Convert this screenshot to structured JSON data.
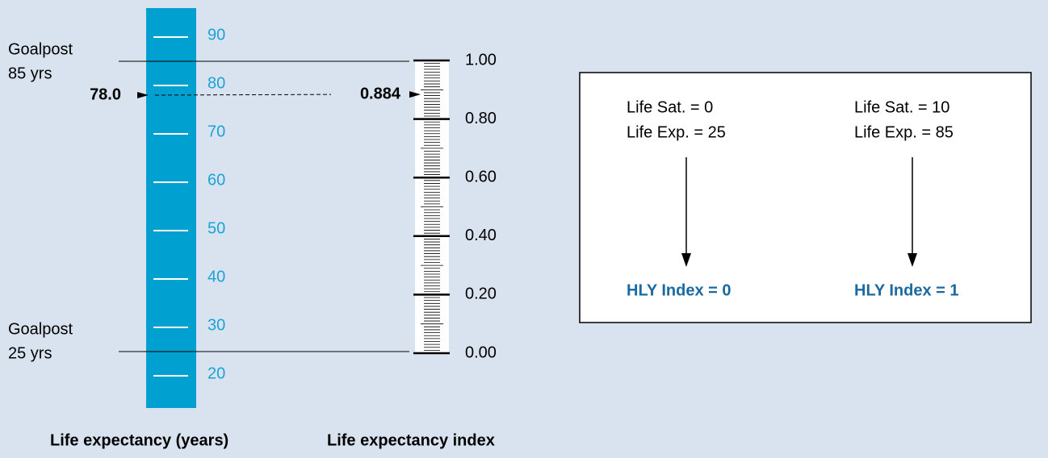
{
  "left_scale": {
    "ticks": [
      20,
      30,
      40,
      50,
      60,
      70,
      80,
      90
    ],
    "goalposts": [
      {
        "lines": [
          "Goalpost",
          "85 yrs"
        ],
        "value": 85
      },
      {
        "lines": [
          "Goalpost",
          "25 yrs"
        ],
        "value": 25
      }
    ],
    "marker": {
      "value": 78,
      "label": "78.0"
    },
    "axis_label": "Life expectancy (years)"
  },
  "right_scale": {
    "ticks": [
      {
        "value": 0,
        "label": "0.00"
      },
      {
        "value": 0.2,
        "label": "0.20"
      },
      {
        "value": 0.4,
        "label": "0.40"
      },
      {
        "value": 0.6,
        "label": "0.60"
      },
      {
        "value": 0.8,
        "label": "0.80"
      },
      {
        "value": 1,
        "label": "1.00"
      }
    ],
    "marker": {
      "value": 0.884,
      "label": "0.884"
    },
    "axis_label": "Life expectancy index"
  },
  "box": {
    "columns": [
      {
        "lines": [
          "Life Sat. = 0",
          "Life Exp. = 25"
        ],
        "result": "HLY Index = 0"
      },
      {
        "lines": [
          "Life Sat. = 10",
          "Life Exp. = 85"
        ],
        "result": "HLY Index = 1"
      }
    ]
  }
}
